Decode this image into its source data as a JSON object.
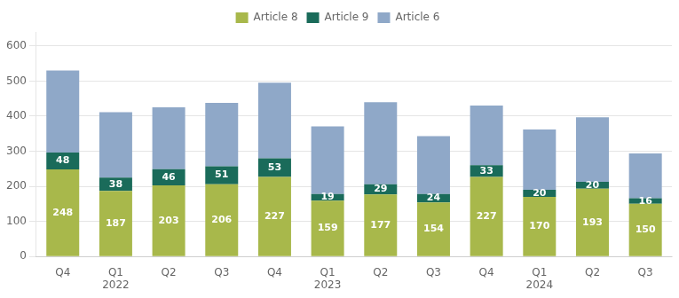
{
  "chart_data": {
    "type": "bar",
    "stacked": true,
    "grid": true,
    "legend": "top",
    "categories": [
      "Q4",
      "Q1\n2022",
      "Q2",
      "Q3",
      "Q4",
      "Q1\n2023",
      "Q2",
      "Q3",
      "Q4",
      "Q1\n2024",
      "Q2",
      "Q3"
    ],
    "series": [
      {
        "name": "Article 8",
        "color": "#a8b84b",
        "data_labels": true,
        "values": [
          248,
          187,
          203,
          206,
          227,
          159,
          177,
          154,
          227,
          170,
          193,
          150
        ]
      },
      {
        "name": "Article 9",
        "color": "#1a6b5a",
        "data_labels": true,
        "values": [
          48,
          38,
          46,
          51,
          53,
          19,
          29,
          24,
          33,
          20,
          20,
          16
        ]
      },
      {
        "name": "Article 6",
        "color": "#8fa8c8",
        "data_labels": false,
        "values": [
          234,
          186,
          176,
          181,
          215,
          193,
          234,
          165,
          170,
          172,
          184,
          128
        ]
      }
    ],
    "ylim": [
      0,
      640
    ],
    "yticks": [
      0,
      100,
      200,
      300,
      400,
      500,
      600
    ]
  }
}
